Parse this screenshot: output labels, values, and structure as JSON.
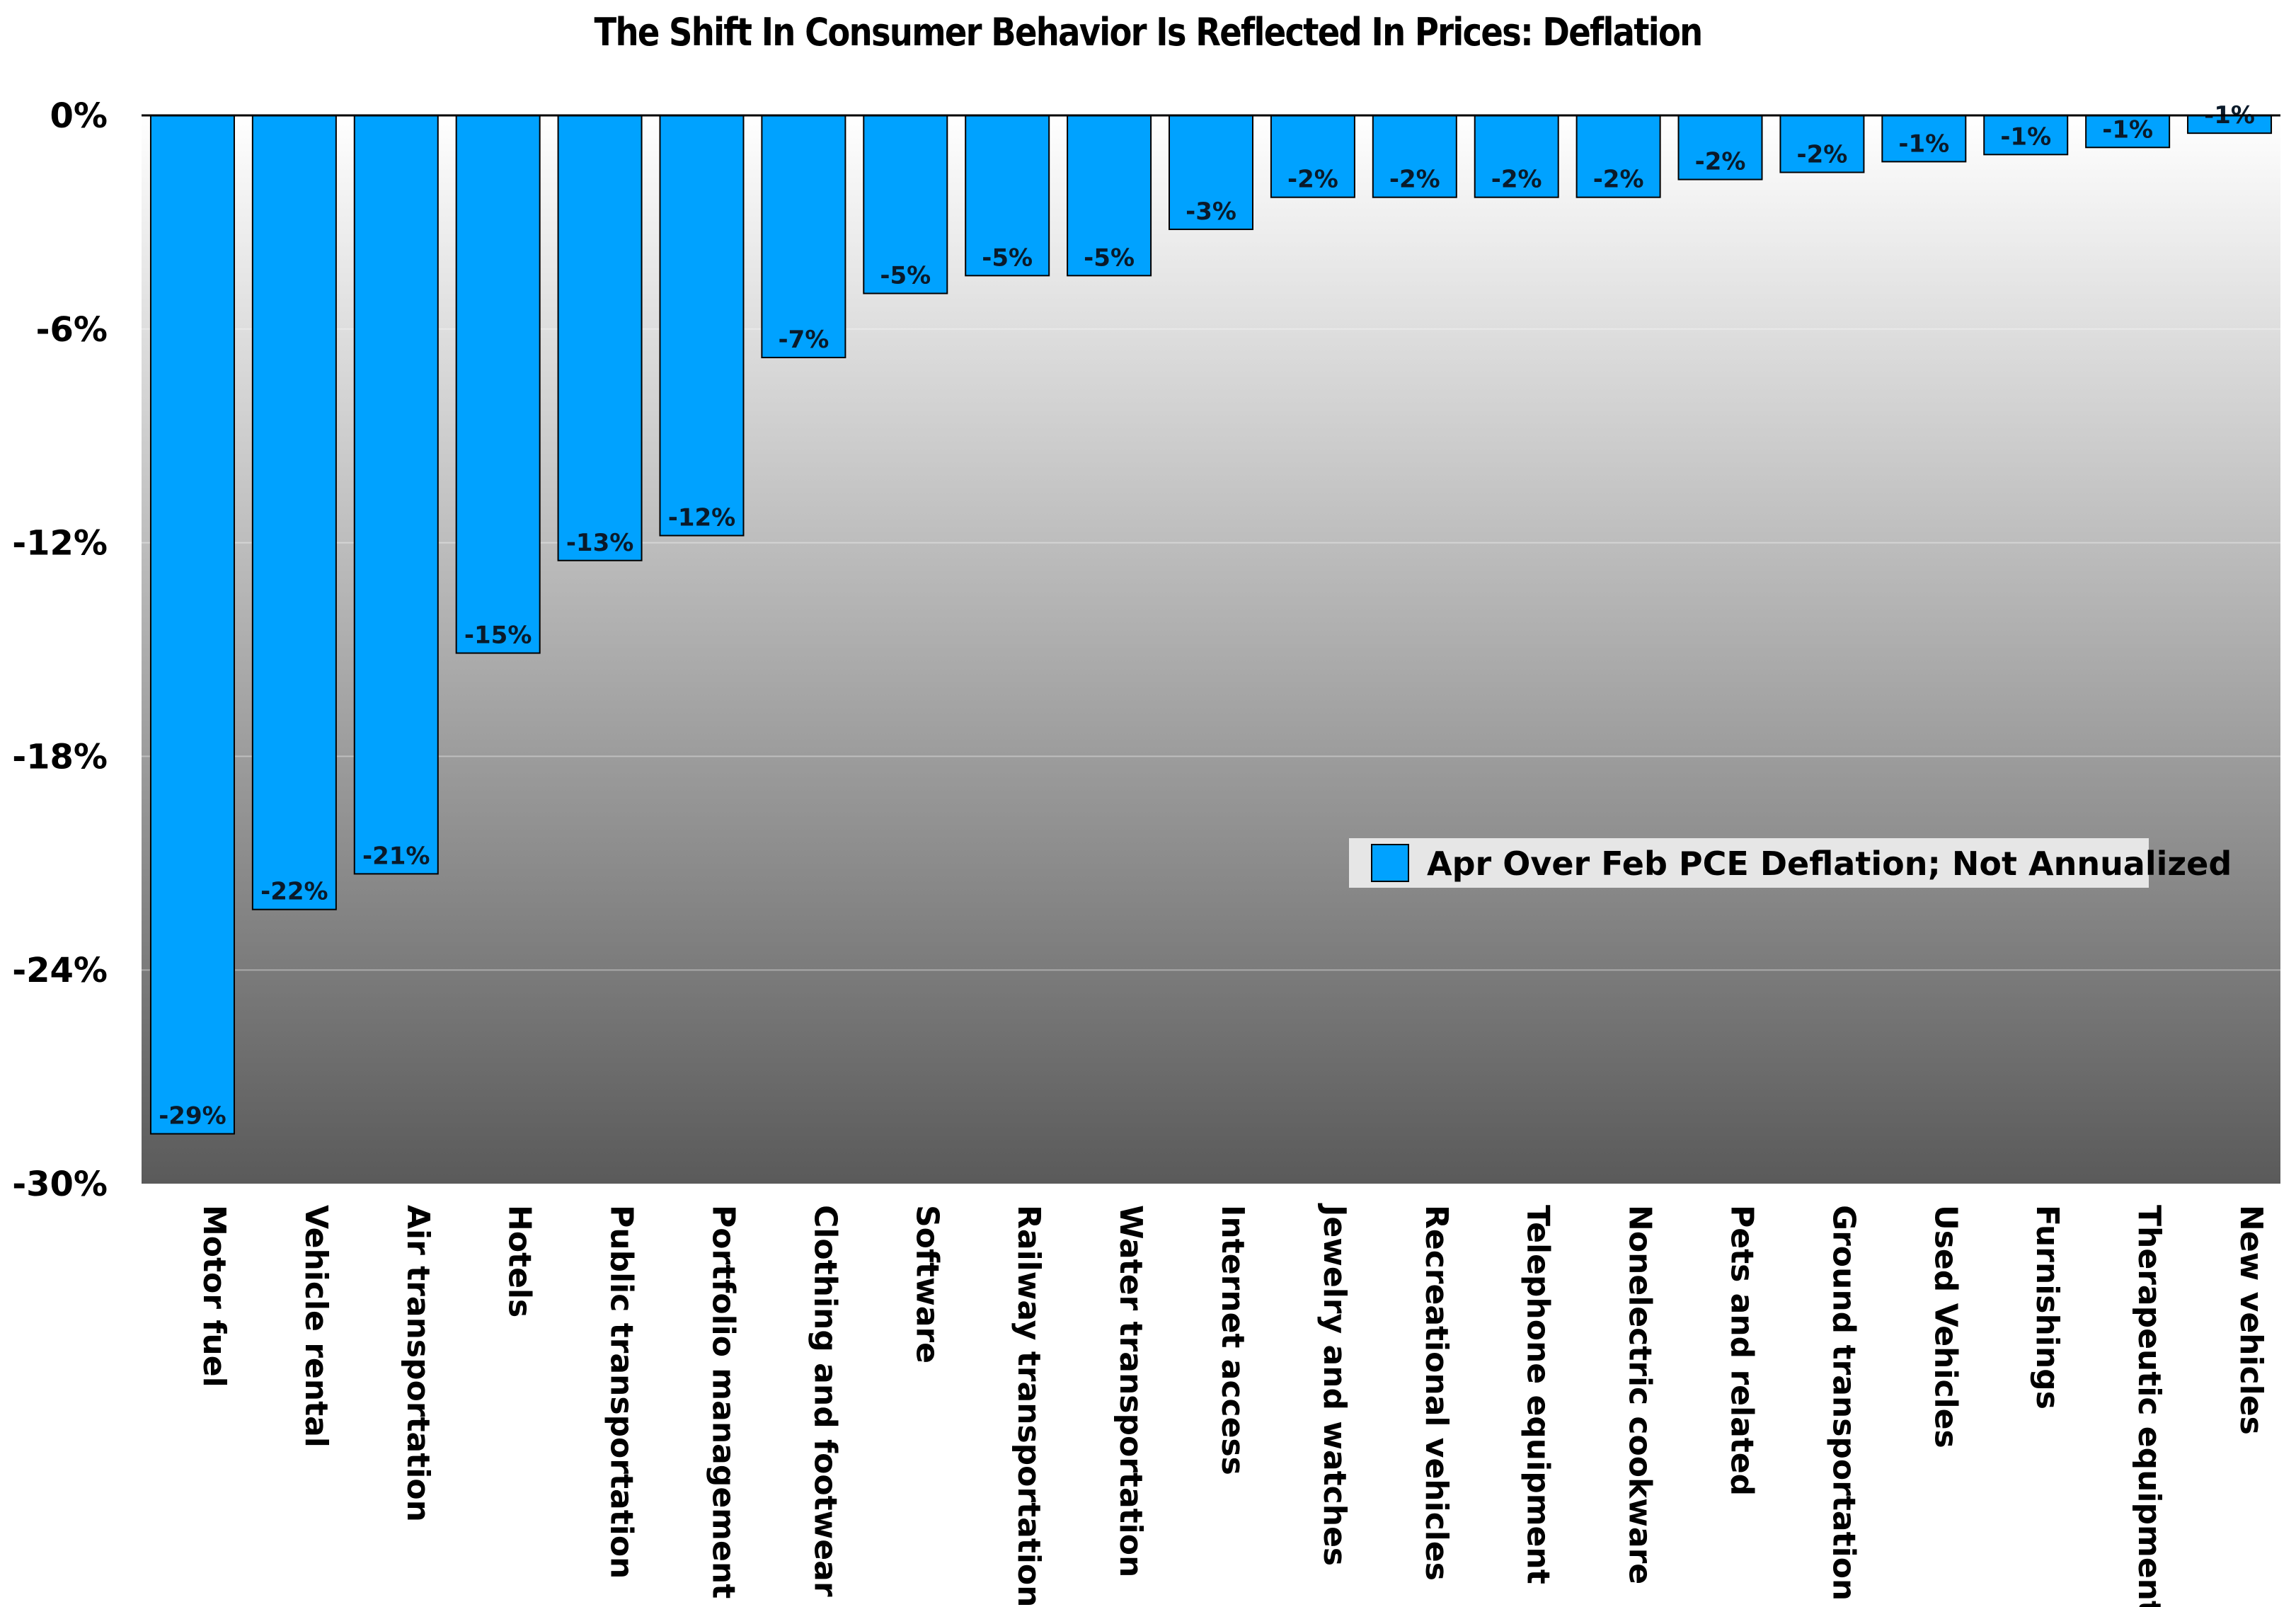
{
  "chart_data": {
    "type": "bar",
    "title": "The Shift In Consumer Behavior Is Reflected In Prices: Deflation",
    "categories": [
      "Motor fuel",
      "Vehicle rental",
      "Air transportation",
      "Hotels",
      "Public transportation",
      "Portfolio management",
      "Clothing and footwear",
      "Software",
      "Railway transportation",
      "Water transportation",
      "Internet access",
      "Jewelry and watches",
      "Recreational vehicles",
      "Telephone equipment",
      "Nonelectric cookware",
      "Pets and related",
      "Ground transportation",
      "Used Vehicles",
      "Furnishings",
      "Therapeutic equipment",
      "New vehicles"
    ],
    "series": [
      {
        "name": "Apr Over Feb PCE Deflation; Not Annualized",
        "values": [
          -28.6,
          -22.3,
          -21.3,
          -15.1,
          -12.5,
          -11.8,
          -6.8,
          -5.0,
          -4.5,
          -4.5,
          -3.2,
          -2.3,
          -2.3,
          -2.3,
          -2.3,
          -1.8,
          -1.6,
          -1.3,
          -1.1,
          -0.9,
          -0.5
        ],
        "labels": [
          "-29%",
          "-22%",
          "-21%",
          "-15%",
          "-13%",
          "-12%",
          "-7%",
          "-5%",
          "-5%",
          "-5%",
          "-3%",
          "-2%",
          "-2%",
          "-2%",
          "-2%",
          "-2%",
          "-2%",
          "-1%",
          "-1%",
          "-1%",
          "-1%"
        ]
      }
    ],
    "ylim": [
      -30,
      0
    ],
    "yticks": [
      0,
      -6,
      -12,
      -18,
      -24,
      -30
    ],
    "ytick_labels": [
      "0%",
      "-6%",
      "-12%",
      "-18%",
      "-24%",
      "-30%"
    ],
    "grid": true,
    "legend_position": "center-right",
    "colors": {
      "bar": "#00a2ff",
      "bar_stroke": "#000000",
      "background_top": "#ffffff",
      "background_bottom": "#5a5a5a",
      "legend_bg": "#e6e6e6"
    }
  }
}
